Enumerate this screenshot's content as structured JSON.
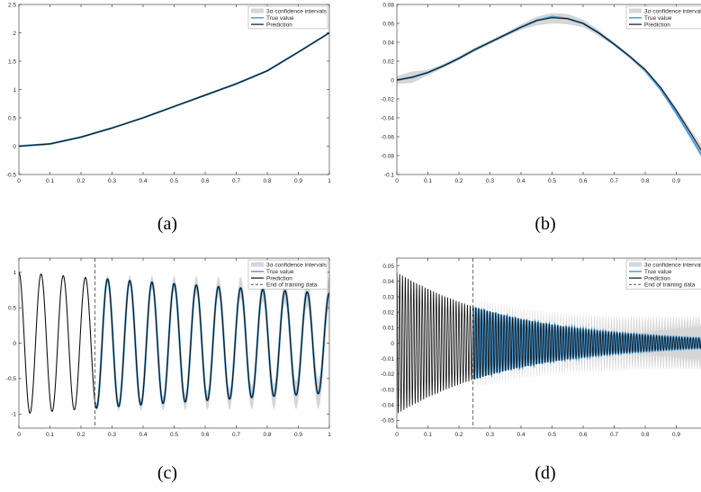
{
  "chart_data": [
    {
      "type": "line",
      "caption": "(a)",
      "xlim": [
        0,
        1
      ],
      "ylim": [
        -0.5,
        2.5
      ],
      "xticks": [
        "0",
        "0.1",
        "0.2",
        "0.3",
        "0.4",
        "0.5",
        "0.6",
        "0.7",
        "0.8",
        "0.9",
        "1"
      ],
      "yticks": [
        "-0.5",
        "0",
        "0.5",
        "1",
        "1.5",
        "2",
        "2.5"
      ],
      "legend": [
        "3σ confidence intervals",
        "True value",
        "Prediction"
      ],
      "legend_position": "top-right",
      "series": [
        {
          "name": "True value",
          "x": [
            0,
            0.1,
            0.2,
            0.3,
            0.4,
            0.5,
            0.6,
            0.7,
            0.8,
            0.9,
            1.0
          ],
          "y": [
            0,
            0.04,
            0.16,
            0.32,
            0.5,
            0.7,
            0.9,
            1.1,
            1.33,
            1.66,
            2.0
          ]
        },
        {
          "name": "Prediction",
          "x": [
            0,
            0.1,
            0.2,
            0.3,
            0.4,
            0.5,
            0.6,
            0.7,
            0.8,
            0.9,
            1.0
          ],
          "y": [
            0,
            0.04,
            0.16,
            0.32,
            0.5,
            0.7,
            0.9,
            1.1,
            1.33,
            1.66,
            2.0
          ]
        }
      ]
    },
    {
      "type": "line",
      "caption": "(b)",
      "xlim": [
        0,
        1
      ],
      "ylim": [
        -0.1,
        0.08
      ],
      "xticks": [
        "0",
        "0.1",
        "0.2",
        "0.3",
        "0.4",
        "0.5",
        "0.6",
        "0.7",
        "0.8",
        "0.9"
      ],
      "yticks": [
        "-0.1",
        "-0.08",
        "-0.06",
        "-0.04",
        "-0.02",
        "0",
        "0.02",
        "0.04",
        "0.06",
        "0.08"
      ],
      "legend": [
        "3σ confidence intervals",
        "True value",
        "Prediction"
      ],
      "legend_position": "top-right",
      "series": [
        {
          "name": "True value",
          "x": [
            0,
            0.05,
            0.1,
            0.15,
            0.2,
            0.25,
            0.3,
            0.35,
            0.4,
            0.45,
            0.5,
            0.55,
            0.6,
            0.65,
            0.7,
            0.75,
            0.8,
            0.85,
            0.9,
            0.95,
            1.0
          ],
          "y": [
            0,
            0.003,
            0.008,
            0.015,
            0.023,
            0.032,
            0.04,
            0.048,
            0.056,
            0.063,
            0.067,
            0.065,
            0.06,
            0.05,
            0.038,
            0.025,
            0.01,
            -0.01,
            -0.035,
            -0.062,
            -0.09
          ]
        },
        {
          "name": "Prediction",
          "x": [
            0,
            0.05,
            0.1,
            0.15,
            0.2,
            0.25,
            0.3,
            0.35,
            0.4,
            0.45,
            0.5,
            0.55,
            0.6,
            0.65,
            0.7,
            0.75,
            0.8,
            0.85,
            0.9,
            0.95,
            1.0
          ],
          "y": [
            0,
            0.003,
            0.008,
            0.015,
            0.023,
            0.032,
            0.04,
            0.048,
            0.056,
            0.063,
            0.066,
            0.065,
            0.06,
            0.05,
            0.038,
            0.025,
            0.011,
            -0.008,
            -0.032,
            -0.058,
            -0.085
          ]
        }
      ],
      "band": {
        "x": [
          0,
          0.05,
          0.1,
          0.15,
          0.2,
          0.25,
          0.3,
          0.35,
          0.4,
          0.45,
          0.5,
          0.55,
          0.6,
          0.65,
          0.7,
          0.75,
          0.8,
          0.85,
          0.9,
          0.95,
          1.0
        ],
        "lower": [
          -0.004,
          -0.003,
          0.005,
          0.013,
          0.021,
          0.03,
          0.038,
          0.046,
          0.053,
          0.058,
          0.06,
          0.059,
          0.056,
          0.047,
          0.036,
          0.023,
          0.008,
          -0.011,
          -0.036,
          -0.063,
          -0.092
        ],
        "upper": [
          0.004,
          0.009,
          0.011,
          0.017,
          0.025,
          0.034,
          0.042,
          0.05,
          0.059,
          0.067,
          0.071,
          0.07,
          0.064,
          0.053,
          0.04,
          0.027,
          0.013,
          -0.006,
          -0.029,
          -0.054,
          -0.078
        ]
      }
    },
    {
      "type": "line",
      "caption": "(c)",
      "xlim": [
        0,
        1
      ],
      "ylim": [
        -1.2,
        1.2
      ],
      "xticks": [
        "0",
        "0.1",
        "0.2",
        "0.3",
        "0.4",
        "0.5",
        "0.6",
        "0.7",
        "0.8",
        "0.9",
        "1"
      ],
      "yticks": [
        "-1",
        "-0.5",
        "0",
        "0.5",
        "1"
      ],
      "legend": [
        "3σ confidence intervals",
        "True value",
        "Prediction",
        "End of training data"
      ],
      "legend_position": "top-right",
      "training_end": 0.245,
      "signal": {
        "model": "damped_cosine",
        "amplitude": 1.0,
        "cycles": 14,
        "decay": 0.35,
        "band_start": 0.25,
        "band_width": [
          0.05,
          0.22
        ]
      }
    },
    {
      "type": "line",
      "caption": "(d)",
      "xlim": [
        0,
        1
      ],
      "ylim": [
        -0.055,
        0.055
      ],
      "xticks": [
        "0",
        "0.1",
        "0.2",
        "0.3",
        "0.4",
        "0.5",
        "0.6",
        "0.7",
        "0.8",
        "0.9"
      ],
      "yticks": [
        "-0.05",
        "-0.04",
        "-0.03",
        "-0.02",
        "-0.01",
        "0",
        "0.01",
        "0.02",
        "0.03",
        "0.04",
        "0.05"
      ],
      "legend": [
        "3σ confidence intervals",
        "True value",
        "Prediction",
        "End of training data"
      ],
      "legend_position": "top-right",
      "training_end": 0.245,
      "signal": {
        "model": "damped_oscillation",
        "amplitude": 0.046,
        "cycles": 110,
        "decay": 2.7,
        "band_start": 0.25,
        "band_width": [
          0.006,
          0.014
        ]
      }
    }
  ],
  "colors": {
    "true_value": "#4a9fdc",
    "prediction": "#111111",
    "band": "#d6d6d6",
    "training_line": "#777777",
    "axis": "#262626"
  }
}
